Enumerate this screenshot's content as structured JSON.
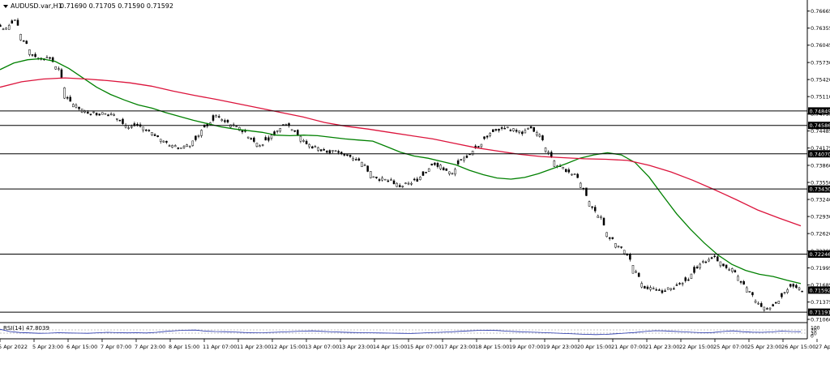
{
  "window": {
    "symbol_title": "AUDUSD.var,H1",
    "ohlc": "0.71690 0.71705 0.71590 0.71592",
    "rsi_label": "RSI(14) 47.8039"
  },
  "colors": {
    "candle": "#000000",
    "ma_fast": "#008000",
    "ma_slow": "#dc143c",
    "rsi": "#1f2fa8",
    "hline": "#000000",
    "price_label_bg": "#000000",
    "price_label_text": "#ffffff"
  },
  "chart_data": [
    {
      "type": "candlestick",
      "title": "AUDUSD.var,H1",
      "ylim": [
        0.7106,
        0.7666
      ],
      "y_ticks": [
        "0.76665",
        "0.76355",
        "0.76045",
        "0.75730",
        "0.75420",
        "0.75110",
        "0.74795",
        "0.74485",
        "0.74175",
        "0.73860",
        "0.73550",
        "0.73240",
        "0.72930",
        "0.72620",
        "0.72305",
        "0.71995",
        "0.71685",
        "0.71375",
        "0.71060"
      ],
      "x_ticks": [
        "5 Apr 2022",
        "5 Apr 23:00",
        "6 Apr 15:00",
        "7 Apr 07:00",
        "7 Apr 23:00",
        "8 Apr 15:00",
        "11 Apr 07:00",
        "11 Apr 23:00",
        "12 Apr 15:00",
        "13 Apr 07:00",
        "13 Apr 23:00",
        "14 Apr 15:00",
        "15 Apr 07:00",
        "17 Apr 23:00",
        "18 Apr 15:00",
        "19 Apr 07:00",
        "19 Apr 23:00",
        "20 Apr 15:00",
        "21 Apr 07:00",
        "21 Apr 23:00",
        "22 Apr 15:00",
        "25 Apr 07:00",
        "25 Apr 23:00",
        "26 Apr 15:00",
        "27 Apr 07:00"
      ],
      "horizontal_levels": [
        "0.74849",
        "0.74586",
        "0.74070",
        "0.73430",
        "0.72246",
        "0.71191"
      ],
      "current_price": "0.71592",
      "close_path": [
        0.7633,
        0.765,
        0.7612,
        0.7588,
        0.758,
        0.7582,
        0.756,
        0.751,
        0.7492,
        0.7483,
        0.7481,
        0.748,
        0.7478,
        0.747,
        0.7455,
        0.746,
        0.745,
        0.744,
        0.743,
        0.742,
        0.7418,
        0.7422,
        0.744,
        0.746,
        0.7475,
        0.7468,
        0.7457,
        0.745,
        0.7436,
        0.7422,
        0.7435,
        0.7448,
        0.7462,
        0.745,
        0.743,
        0.742,
        0.7415,
        0.7412,
        0.741,
        0.7405,
        0.7398,
        0.7385,
        0.7365,
        0.736,
        0.7358,
        0.7348,
        0.7352,
        0.736,
        0.7375,
        0.739,
        0.738,
        0.737,
        0.7395,
        0.7405,
        0.742,
        0.744,
        0.7452,
        0.7455,
        0.745,
        0.7445,
        0.7455,
        0.744,
        0.741,
        0.7385,
        0.7378,
        0.737,
        0.7345,
        0.731,
        0.729,
        0.7255,
        0.7238,
        0.7225,
        0.719,
        0.7165,
        0.716,
        0.7158,
        0.7162,
        0.717,
        0.718,
        0.72,
        0.7212,
        0.722,
        0.7205,
        0.7195,
        0.7175,
        0.7155,
        0.7135,
        0.7125,
        0.7135,
        0.7155,
        0.7168,
        0.7159
      ],
      "series": [
        {
          "values": [
            0.756,
            0.7572,
            0.7578,
            0.758,
            0.7575,
            0.7562,
            0.7545,
            0.7528,
            0.7515,
            0.7505,
            0.7496,
            0.749,
            0.7482,
            0.7475,
            0.7468,
            0.7462,
            0.7456,
            0.7452,
            0.7449,
            0.7446,
            0.7441,
            0.744,
            0.7441,
            0.744,
            0.7437,
            0.7434,
            0.7432,
            0.743,
            0.742,
            0.741,
            0.7403,
            0.7399,
            0.7393,
            0.7387,
            0.7377,
            0.7369,
            0.7363,
            0.7361,
            0.7364,
            0.7371,
            0.738,
            0.7389,
            0.7399,
            0.7405,
            0.7409,
            0.7405,
            0.7391,
            0.7365,
            0.7331,
            0.7298,
            0.727,
            0.7245,
            0.7223,
            0.7206,
            0.7195,
            0.7188,
            0.7184,
            0.7177,
            0.7171
          ]
        },
        {
          "values": [
            0.7528,
            0.7538,
            0.7543,
            0.7545,
            0.7543,
            0.754,
            0.7536,
            0.753,
            0.7521,
            0.7513,
            0.7506,
            0.7498,
            0.749,
            0.7482,
            0.7474,
            0.7464,
            0.7457,
            0.7452,
            0.7446,
            0.744,
            0.7434,
            0.7426,
            0.7418,
            0.7412,
            0.7406,
            0.7402,
            0.74,
            0.7398,
            0.7397,
            0.7395,
            0.7386,
            0.7374,
            0.7359,
            0.7342,
            0.7324,
            0.7305,
            0.729,
            0.7276
          ]
        }
      ]
    },
    {
      "type": "line",
      "title": "RSI(14) 47.8039",
      "ylim": [
        0,
        100
      ],
      "y_ticks": [
        "100",
        "70",
        "30",
        "0"
      ],
      "levels": [
        70,
        30
      ],
      "values": [
        78,
        50,
        38,
        33,
        28,
        30,
        35,
        32,
        30,
        28,
        34,
        40,
        36,
        33,
        35,
        32,
        40,
        52,
        60,
        66,
        68,
        55,
        50,
        48,
        44,
        38,
        35,
        36,
        40,
        45,
        50,
        55,
        58,
        52,
        46,
        42,
        38,
        36,
        34,
        32,
        30,
        28,
        26,
        30,
        36,
        40,
        45,
        52,
        58,
        64,
        66,
        62,
        54,
        48,
        44,
        40,
        35,
        30,
        25,
        20,
        15,
        12,
        15,
        22,
        30,
        38,
        50,
        60,
        58,
        52,
        46,
        40,
        35,
        38,
        50,
        58,
        48,
        42,
        40,
        45,
        55,
        50,
        48
      ]
    }
  ]
}
